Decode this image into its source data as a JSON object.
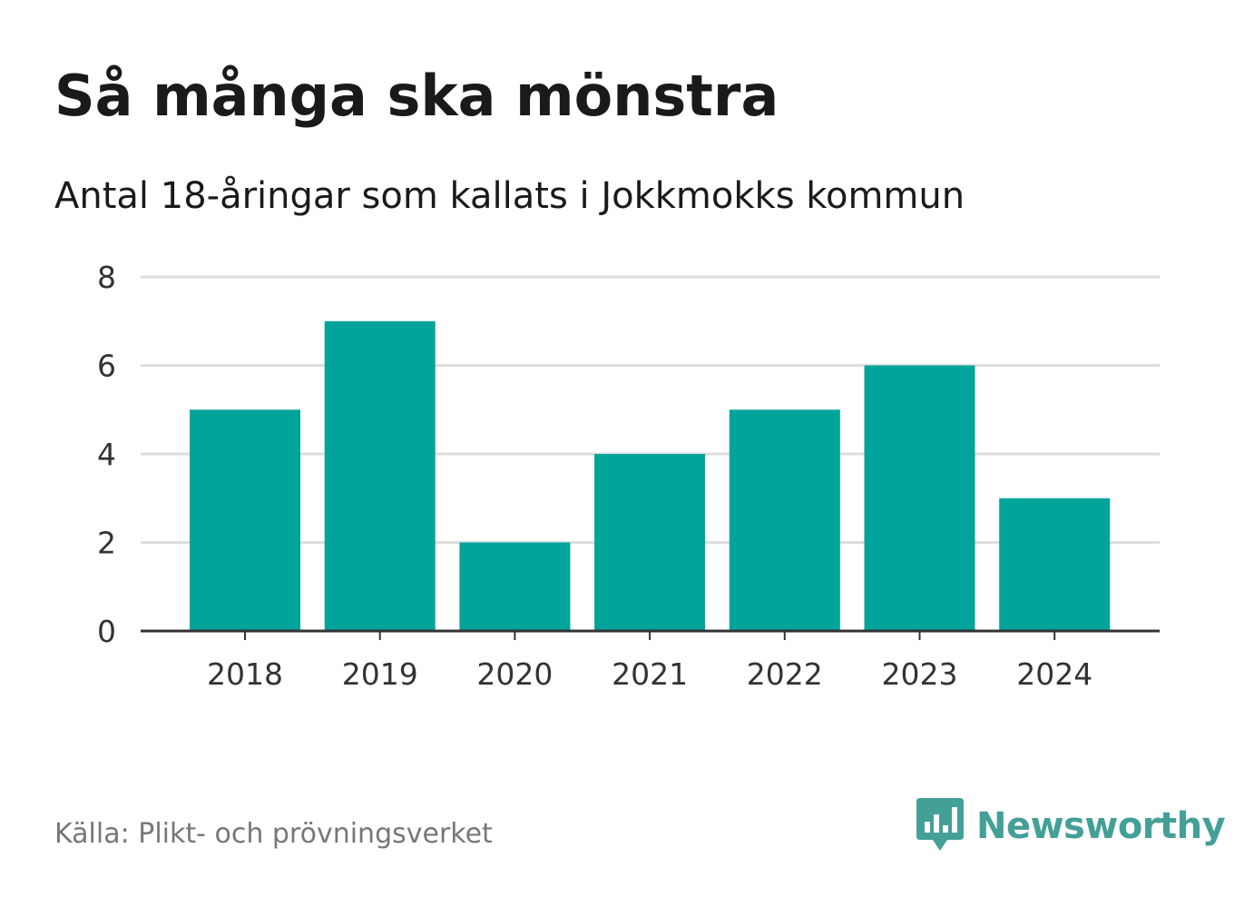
{
  "title": "Så många ska mönstra",
  "subtitle": "Antal 18-åringar som kallats i Jokkmokks kommun",
  "source": "Källa: Plikt- och prövningsverket",
  "brand": {
    "name": "Newsworthy",
    "icon": "newsworthy-logo-icon",
    "color": "#43a097"
  },
  "colors": {
    "bar": "#00a49a",
    "grid": "#dddddd",
    "axis": "#333333"
  },
  "chart_data": {
    "type": "bar",
    "categories": [
      "2018",
      "2019",
      "2020",
      "2021",
      "2022",
      "2023",
      "2024"
    ],
    "values": [
      5,
      7,
      2,
      4,
      5,
      6,
      3
    ],
    "ylim": [
      0,
      8
    ],
    "yticks": [
      0,
      2,
      4,
      6,
      8
    ],
    "grid": true,
    "xlabel": "",
    "ylabel": ""
  }
}
